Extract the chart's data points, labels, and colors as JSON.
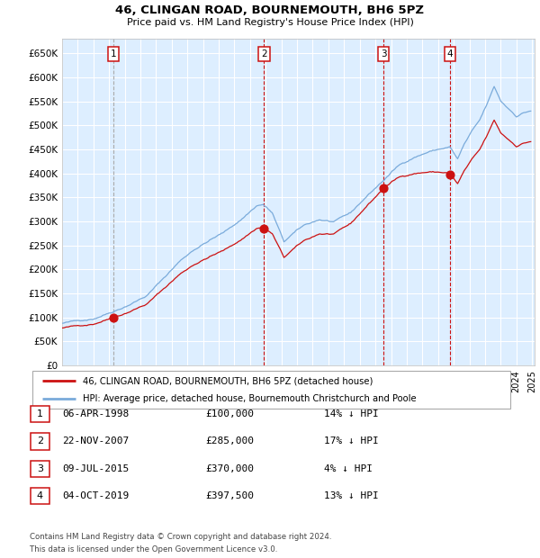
{
  "title": "46, CLINGAN ROAD, BOURNEMOUTH, BH6 5PZ",
  "subtitle": "Price paid vs. HM Land Registry's House Price Index (HPI)",
  "sale_dates": [
    "1998-04-06",
    "2007-11-22",
    "2015-07-09",
    "2019-10-04"
  ],
  "sale_prices": [
    100000,
    285000,
    370000,
    397500
  ],
  "sale_labels": [
    "1",
    "2",
    "3",
    "4"
  ],
  "sale_pct": [
    "14% ↓ HPI",
    "17% ↓ HPI",
    "4% ↓ HPI",
    "13% ↓ HPI"
  ],
  "sale_display": [
    "06-APR-1998",
    "22-NOV-2007",
    "09-JUL-2015",
    "04-OCT-2019"
  ],
  "sale_prices_display": [
    "£100,000",
    "£285,000",
    "£370,000",
    "£397,500"
  ],
  "hpi_line_color": "#7aabdb",
  "sale_line_color": "#cc1111",
  "marker_color": "#cc1111",
  "vline_color": "#cc1111",
  "vline_gray_color": "#aaaaaa",
  "background_color": "#ddeeff",
  "grid_color": "#ffffff",
  "box_color": "#cc1111",
  "yticks": [
    0,
    50000,
    100000,
    150000,
    200000,
    250000,
    300000,
    350000,
    400000,
    450000,
    500000,
    550000,
    600000,
    650000
  ],
  "ylim": [
    0,
    680000
  ],
  "footnote1": "Contains HM Land Registry data © Crown copyright and database right 2024.",
  "footnote2": "This data is licensed under the Open Government Licence v3.0."
}
